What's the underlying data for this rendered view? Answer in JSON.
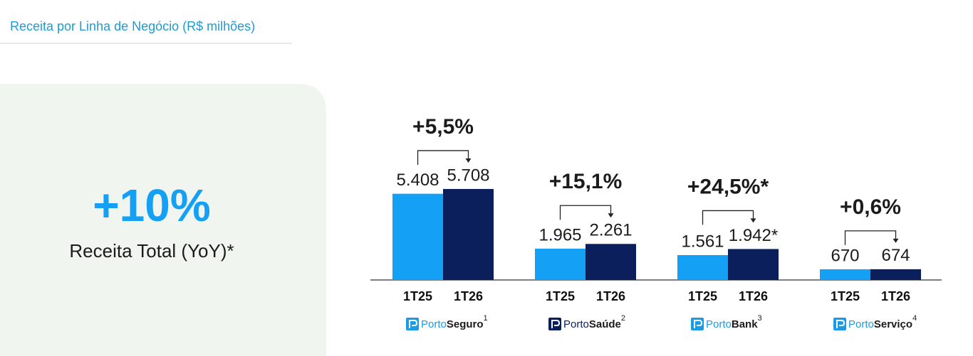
{
  "chart_data": {
    "type": "bar",
    "title": "Receita por Linha de Negócio (R$ milhões)",
    "highlight": {
      "value": "+10%",
      "label": "Receita Total (YoY)*"
    },
    "category_prefix": "Porto",
    "categories": [
      "Seguro",
      "Saúde",
      "Bank",
      "Serviço"
    ],
    "category_notes": [
      "1",
      "2",
      "3",
      "4"
    ],
    "category_colors": [
      "#1a9be6",
      "#0b1f5c",
      "#1a9be6",
      "#1a9be6"
    ],
    "series": [
      {
        "name": "1T25",
        "color": "#14a0f5",
        "values": [
          5408,
          1965,
          1561,
          670
        ],
        "value_labels": [
          "5.408",
          "1.965",
          "1.561",
          "670"
        ]
      },
      {
        "name": "1T26",
        "color": "#0b1f5c",
        "values": [
          5708,
          2261,
          1942,
          674
        ],
        "value_labels": [
          "5.708",
          "2.261",
          "1.942*",
          "674"
        ]
      }
    ],
    "annotations": [
      "+5,5%",
      "+15,1%",
      "+24,5%*",
      "+0,6%"
    ],
    "ylim": [
      0,
      6000
    ]
  }
}
